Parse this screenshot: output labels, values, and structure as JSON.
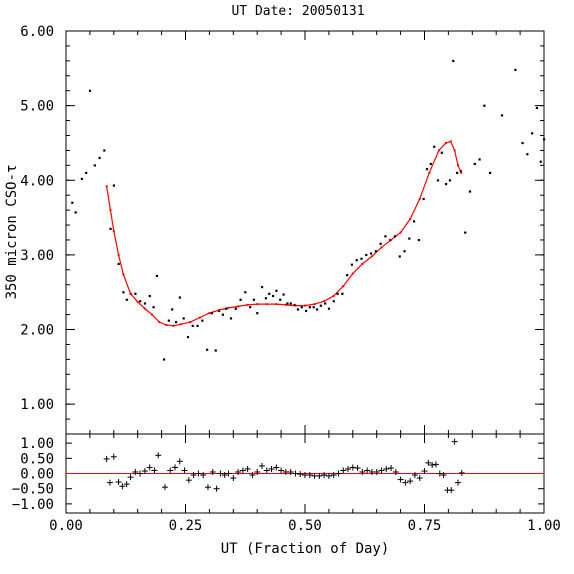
{
  "chart_data": {
    "type": "scatter",
    "title": "UT Date: 20050131",
    "xlabel": "UT (Fraction of Day)",
    "ylabel": "350 micron CSO-τ",
    "colors": {
      "points": "#000000",
      "fit": "#ff0000",
      "axes": "#000000"
    },
    "grid": false,
    "x_ticks": [
      "0.00",
      "0.25",
      "0.50",
      "0.75",
      "1.00"
    ],
    "x_tick_values": [
      0.0,
      0.25,
      0.5,
      0.75,
      1.0
    ],
    "xlim": [
      0.0,
      1.0
    ],
    "main_panel": {
      "ylim": [
        0.6,
        6.0
      ],
      "y_ticks": [
        "1.00",
        "2.00",
        "3.00",
        "4.00",
        "5.00",
        "6.00"
      ],
      "y_tick_values": [
        1.0,
        2.0,
        3.0,
        4.0,
        5.0,
        6.0
      ],
      "points": [
        [
          0.013,
          3.7
        ],
        [
          0.02,
          3.57
        ],
        [
          0.033,
          4.02
        ],
        [
          0.042,
          4.1
        ],
        [
          0.05,
          5.2
        ],
        [
          0.06,
          4.2
        ],
        [
          0.07,
          4.3
        ],
        [
          0.08,
          4.4
        ],
        [
          0.093,
          3.35
        ],
        [
          0.1,
          3.93
        ],
        [
          0.11,
          2.88
        ],
        [
          0.12,
          2.5
        ],
        [
          0.127,
          2.4
        ],
        [
          0.135,
          2.48
        ],
        [
          0.145,
          2.48
        ],
        [
          0.155,
          2.38
        ],
        [
          0.165,
          2.35
        ],
        [
          0.175,
          2.45
        ],
        [
          0.183,
          2.3
        ],
        [
          0.19,
          2.72
        ],
        [
          0.205,
          1.6
        ],
        [
          0.215,
          2.12
        ],
        [
          0.222,
          2.27
        ],
        [
          0.23,
          2.1
        ],
        [
          0.238,
          2.43
        ],
        [
          0.246,
          2.15
        ],
        [
          0.255,
          1.9
        ],
        [
          0.265,
          2.05
        ],
        [
          0.275,
          2.05
        ],
        [
          0.285,
          2.12
        ],
        [
          0.295,
          1.73
        ],
        [
          0.305,
          2.22
        ],
        [
          0.313,
          1.72
        ],
        [
          0.32,
          2.25
        ],
        [
          0.328,
          2.2
        ],
        [
          0.335,
          2.28
        ],
        [
          0.345,
          2.15
        ],
        [
          0.355,
          2.28
        ],
        [
          0.365,
          2.4
        ],
        [
          0.375,
          2.5
        ],
        [
          0.385,
          2.3
        ],
        [
          0.393,
          2.4
        ],
        [
          0.4,
          2.22
        ],
        [
          0.41,
          2.57
        ],
        [
          0.418,
          2.42
        ],
        [
          0.425,
          2.48
        ],
        [
          0.433,
          2.45
        ],
        [
          0.44,
          2.52
        ],
        [
          0.448,
          2.4
        ],
        [
          0.455,
          2.47
        ],
        [
          0.463,
          2.35
        ],
        [
          0.47,
          2.35
        ],
        [
          0.478,
          2.33
        ],
        [
          0.485,
          2.27
        ],
        [
          0.493,
          2.3
        ],
        [
          0.502,
          2.25
        ],
        [
          0.51,
          2.3
        ],
        [
          0.518,
          2.3
        ],
        [
          0.525,
          2.27
        ],
        [
          0.533,
          2.32
        ],
        [
          0.542,
          2.35
        ],
        [
          0.55,
          2.28
        ],
        [
          0.56,
          2.38
        ],
        [
          0.568,
          2.48
        ],
        [
          0.578,
          2.48
        ],
        [
          0.588,
          2.73
        ],
        [
          0.598,
          2.87
        ],
        [
          0.608,
          2.93
        ],
        [
          0.618,
          2.95
        ],
        [
          0.628,
          3.0
        ],
        [
          0.638,
          3.02
        ],
        [
          0.648,
          3.05
        ],
        [
          0.658,
          3.15
        ],
        [
          0.668,
          3.25
        ],
        [
          0.678,
          3.2
        ],
        [
          0.688,
          3.25
        ],
        [
          0.698,
          2.98
        ],
        [
          0.708,
          3.05
        ],
        [
          0.718,
          3.22
        ],
        [
          0.728,
          3.45
        ],
        [
          0.738,
          3.2
        ],
        [
          0.748,
          3.75
        ],
        [
          0.755,
          4.15
        ],
        [
          0.763,
          4.22
        ],
        [
          0.77,
          4.45
        ],
        [
          0.778,
          4.0
        ],
        [
          0.786,
          4.37
        ],
        [
          0.795,
          3.95
        ],
        [
          0.803,
          4.0
        ],
        [
          0.81,
          5.6
        ],
        [
          0.818,
          4.1
        ],
        [
          0.826,
          4.12
        ],
        [
          0.835,
          3.3
        ],
        [
          0.845,
          3.85
        ],
        [
          0.855,
          4.22
        ],
        [
          0.865,
          4.28
        ],
        [
          0.875,
          5.0
        ],
        [
          0.887,
          4.1
        ],
        [
          0.912,
          4.87
        ],
        [
          0.94,
          5.48
        ],
        [
          0.955,
          4.5
        ],
        [
          0.965,
          4.35
        ],
        [
          0.975,
          4.63
        ],
        [
          0.985,
          4.97
        ],
        [
          0.993,
          4.25
        ],
        [
          1.0,
          4.55
        ]
      ],
      "fit_curve": [
        [
          0.085,
          3.92
        ],
        [
          0.093,
          3.6
        ],
        [
          0.1,
          3.32
        ],
        [
          0.11,
          3.0
        ],
        [
          0.12,
          2.74
        ],
        [
          0.135,
          2.48
        ],
        [
          0.15,
          2.37
        ],
        [
          0.165,
          2.28
        ],
        [
          0.18,
          2.2
        ],
        [
          0.195,
          2.1
        ],
        [
          0.21,
          2.06
        ],
        [
          0.225,
          2.05
        ],
        [
          0.24,
          2.07
        ],
        [
          0.26,
          2.1
        ],
        [
          0.28,
          2.16
        ],
        [
          0.3,
          2.22
        ],
        [
          0.32,
          2.26
        ],
        [
          0.34,
          2.29
        ],
        [
          0.36,
          2.31
        ],
        [
          0.38,
          2.33
        ],
        [
          0.4,
          2.34
        ],
        [
          0.42,
          2.34
        ],
        [
          0.44,
          2.34
        ],
        [
          0.46,
          2.33
        ],
        [
          0.48,
          2.32
        ],
        [
          0.5,
          2.32
        ],
        [
          0.52,
          2.34
        ],
        [
          0.54,
          2.38
        ],
        [
          0.56,
          2.45
        ],
        [
          0.58,
          2.58
        ],
        [
          0.6,
          2.75
        ],
        [
          0.62,
          2.88
        ],
        [
          0.64,
          2.98
        ],
        [
          0.66,
          3.1
        ],
        [
          0.68,
          3.2
        ],
        [
          0.7,
          3.3
        ],
        [
          0.72,
          3.48
        ],
        [
          0.74,
          3.75
        ],
        [
          0.76,
          4.1
        ],
        [
          0.78,
          4.4
        ],
        [
          0.795,
          4.5
        ],
        [
          0.805,
          4.52
        ],
        [
          0.813,
          4.4
        ],
        [
          0.82,
          4.2
        ],
        [
          0.827,
          4.1
        ]
      ]
    },
    "residual_panel": {
      "ylim": [
        -1.3,
        1.3
      ],
      "y_ticks": [
        "1.00",
        "0.50",
        "0.00",
        "−0.50",
        "−1.00"
      ],
      "y_tick_values": [
        1.0,
        0.5,
        0.0,
        -0.5,
        -1.0
      ],
      "zero_line": 0.0,
      "points": [
        [
          0.085,
          0.48
        ],
        [
          0.092,
          -0.3
        ],
        [
          0.1,
          0.55
        ],
        [
          0.11,
          -0.28
        ],
        [
          0.118,
          -0.42
        ],
        [
          0.127,
          -0.35
        ],
        [
          0.135,
          -0.12
        ],
        [
          0.145,
          0.05
        ],
        [
          0.155,
          0.0
        ],
        [
          0.165,
          0.08
        ],
        [
          0.175,
          0.2
        ],
        [
          0.185,
          0.1
        ],
        [
          0.193,
          0.6
        ],
        [
          0.207,
          -0.45
        ],
        [
          0.218,
          0.1
        ],
        [
          0.228,
          0.2
        ],
        [
          0.238,
          0.4
        ],
        [
          0.248,
          0.1
        ],
        [
          0.257,
          -0.22
        ],
        [
          0.267,
          -0.05
        ],
        [
          0.277,
          0.0
        ],
        [
          0.287,
          -0.05
        ],
        [
          0.297,
          -0.45
        ],
        [
          0.307,
          0.05
        ],
        [
          0.315,
          -0.5
        ],
        [
          0.323,
          0.0
        ],
        [
          0.332,
          -0.05
        ],
        [
          0.34,
          0.0
        ],
        [
          0.35,
          -0.15
        ],
        [
          0.36,
          0.05
        ],
        [
          0.37,
          0.1
        ],
        [
          0.38,
          0.15
        ],
        [
          0.39,
          -0.05
        ],
        [
          0.4,
          0.05
        ],
        [
          0.41,
          0.25
        ],
        [
          0.42,
          0.1
        ],
        [
          0.43,
          0.15
        ],
        [
          0.44,
          0.2
        ],
        [
          0.45,
          0.1
        ],
        [
          0.46,
          0.05
        ],
        [
          0.47,
          0.05
        ],
        [
          0.48,
          0.0
        ],
        [
          0.49,
          -0.02
        ],
        [
          0.5,
          -0.05
        ],
        [
          0.51,
          -0.05
        ],
        [
          0.52,
          -0.08
        ],
        [
          0.53,
          -0.08
        ],
        [
          0.54,
          -0.05
        ],
        [
          0.55,
          -0.08
        ],
        [
          0.56,
          -0.05
        ],
        [
          0.57,
          0.0
        ],
        [
          0.58,
          0.1
        ],
        [
          0.59,
          0.15
        ],
        [
          0.6,
          0.2
        ],
        [
          0.61,
          0.18
        ],
        [
          0.62,
          0.05
        ],
        [
          0.63,
          0.1
        ],
        [
          0.64,
          0.05
        ],
        [
          0.65,
          0.05
        ],
        [
          0.66,
          0.1
        ],
        [
          0.67,
          0.15
        ],
        [
          0.68,
          0.18
        ],
        [
          0.69,
          0.05
        ],
        [
          0.7,
          -0.2
        ],
        [
          0.71,
          -0.3
        ],
        [
          0.72,
          -0.25
        ],
        [
          0.73,
          -0.05
        ],
        [
          0.74,
          -0.15
        ],
        [
          0.75,
          0.08
        ],
        [
          0.758,
          0.35
        ],
        [
          0.766,
          0.28
        ],
        [
          0.774,
          0.3
        ],
        [
          0.782,
          0.0
        ],
        [
          0.79,
          -0.05
        ],
        [
          0.798,
          -0.55
        ],
        [
          0.806,
          -0.55
        ],
        [
          0.813,
          1.05
        ],
        [
          0.82,
          -0.3
        ],
        [
          0.828,
          0.02
        ]
      ]
    }
  }
}
